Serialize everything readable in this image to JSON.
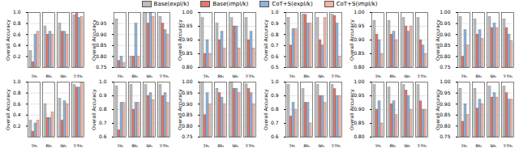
{
  "chart_data": [
    {
      "type": "bar",
      "y_label": "Overall Accuracy",
      "categories": [
        "2b",
        "8b",
        "9b",
        "27b"
      ],
      "ylim": [
        0,
        1
      ],
      "yticks": [
        0.2,
        0.4,
        0.6,
        0.8,
        {
          "value": 1,
          "label": "1.0"
        }
      ],
      "grid": true,
      "legend": "top",
      "series": [
        {
          "name": "Base(expl/k)",
          "color": "#bdbdbd",
          "values": [
            0.3,
            0.75,
            0.8,
            0.95
          ]
        },
        {
          "name": "Base(impl/k)",
          "color": "#e0776b",
          "values": [
            0.1,
            0.6,
            0.65,
            0.98
          ]
        },
        {
          "name": "CoT+S(expl/k)",
          "color": "#8fb3d9",
          "values": [
            0.6,
            0.65,
            0.65,
            0.9
          ]
        },
        {
          "name": "CoT+S(impl/k)",
          "color": "#f2b5a7",
          "values": [
            0.65,
            0.6,
            0.6,
            0.92
          ]
        }
      ]
    },
    {
      "type": "bar",
      "y_label": "Overall Accuracy",
      "categories": [
        "2b",
        "8b",
        "9b",
        "27b"
      ],
      "ylim": [
        0.75,
        1
      ],
      "yticks": [
        0.75,
        {
          "value": 0.8,
          "label": "0.80"
        },
        0.85,
        {
          "value": 0.9,
          "label": "0.90"
        },
        0.95
      ],
      "grid": true,
      "legend": "top",
      "series": [
        {
          "name": "Base(expl/k)",
          "color": "#bdbdbd",
          "values": [
            0.97,
            0.8,
            1.0,
            0.98
          ]
        },
        {
          "name": "Base(impl/k)",
          "color": "#e0776b",
          "values": [
            0.78,
            0.8,
            0.95,
            0.95
          ]
        },
        {
          "name": "CoT+S(expl/k)",
          "color": "#8fb3d9",
          "values": [
            0.8,
            0.95,
            1.0,
            0.92
          ]
        },
        {
          "name": "CoT+S(impl/k)",
          "color": "#f2b5a7",
          "values": [
            0.77,
            0.8,
            0.98,
            0.9
          ]
        }
      ]
    },
    {
      "type": "bar",
      "y_label": "Overall Accuracy",
      "categories": [
        "2b",
        "8b",
        "9b",
        "27b"
      ],
      "ylim": [
        0.8,
        1
      ],
      "yticks": [
        {
          "value": 0.8,
          "label": "0.80"
        },
        0.85,
        {
          "value": 0.9,
          "label": "0.90"
        },
        0.95,
        {
          "value": 1,
          "label": "1.00"
        }
      ],
      "grid": true,
      "legend": "top",
      "series": [
        {
          "name": "Base(expl/k)",
          "color": "#bdbdbd",
          "values": [
            0.98,
            0.96,
            0.98,
            0.98
          ]
        },
        {
          "name": "Base(impl/k)",
          "color": "#e0776b",
          "values": [
            0.85,
            0.9,
            0.95,
            0.9
          ]
        },
        {
          "name": "CoT+S(expl/k)",
          "color": "#8fb3d9",
          "values": [
            0.9,
            0.93,
            0.95,
            0.93
          ]
        },
        {
          "name": "CoT+S(impl/k)",
          "color": "#f2b5a7",
          "values": [
            0.85,
            0.87,
            0.87,
            0.87
          ]
        }
      ]
    },
    {
      "type": "bar",
      "y_label": "Overall Accuracy",
      "categories": [
        "2b",
        "8b",
        "9b",
        "27b"
      ],
      "ylim": [
        0.5,
        1
      ],
      "yticks": [
        0.5,
        0.6,
        0.7,
        0.8,
        0.9,
        {
          "value": 1,
          "label": "1.0"
        }
      ],
      "grid": true,
      "legend": "top",
      "series": [
        {
          "name": "Base(expl/k)",
          "color": "#bdbdbd",
          "values": [
            0.95,
            0.98,
            0.95,
            0.98
          ]
        },
        {
          "name": "Base(impl/k)",
          "color": "#e0776b",
          "values": [
            0.7,
            0.98,
            0.75,
            0.97
          ]
        },
        {
          "name": "CoT+S(expl/k)",
          "color": "#8fb3d9",
          "values": [
            0.85,
            0.9,
            0.7,
            0.9
          ]
        },
        {
          "name": "CoT+S(impl/k)",
          "color": "#f2b5a7",
          "values": [
            0.85,
            0.9,
            0.95,
            0.6
          ]
        }
      ]
    },
    {
      "type": "bar",
      "y_label": "Overall Accuracy",
      "categories": [
        "2b",
        "8b",
        "9b",
        "27b"
      ],
      "ylim": [
        0.8,
        1
      ],
      "yticks": [
        {
          "value": 0.8,
          "label": "0.80"
        },
        0.85,
        {
          "value": 0.9,
          "label": "0.90"
        },
        0.95,
        {
          "value": 1,
          "label": "1.00"
        }
      ],
      "grid": true,
      "legend": "top",
      "series": [
        {
          "name": "Base(expl/k)",
          "color": "#bdbdbd",
          "values": [
            0.97,
            0.97,
            0.98,
            0.98
          ]
        },
        {
          "name": "Base(impl/k)",
          "color": "#e0776b",
          "values": [
            0.92,
            0.92,
            0.95,
            0.9
          ]
        },
        {
          "name": "CoT+S(expl/k)",
          "color": "#8fb3d9",
          "values": [
            0.9,
            0.93,
            0.93,
            0.88
          ]
        },
        {
          "name": "CoT+S(impl/k)",
          "color": "#f2b5a7",
          "values": [
            0.85,
            0.9,
            0.95,
            0.85
          ]
        }
      ]
    },
    {
      "type": "bar",
      "y_label": "Overall Accuracy",
      "categories": [
        "2b",
        "8b",
        "9b",
        "27b"
      ],
      "ylim": [
        0.75,
        1
      ],
      "yticks": [
        0.75,
        {
          "value": 0.8,
          "label": "0.80"
        },
        0.85,
        {
          "value": 0.9,
          "label": "0.90"
        },
        0.95,
        {
          "value": 1,
          "label": "1.00"
        }
      ],
      "grid": true,
      "legend": "top",
      "series": [
        {
          "name": "Base(expl/k)",
          "color": "#bdbdbd",
          "values": [
            0.98,
            0.97,
            0.98,
            0.97
          ]
        },
        {
          "name": "Base(impl/k)",
          "color": "#e0776b",
          "values": [
            0.8,
            0.9,
            0.93,
            0.93
          ]
        },
        {
          "name": "CoT+S(expl/k)",
          "color": "#8fb3d9",
          "values": [
            0.92,
            0.92,
            0.95,
            0.9
          ]
        },
        {
          "name": "CoT+S(impl/k)",
          "color": "#f2b5a7",
          "values": [
            0.85,
            0.88,
            0.93,
            0.87
          ]
        }
      ]
    },
    {
      "type": "bar",
      "y_label": "Overall Accuracy",
      "categories": [
        "2b",
        "8b",
        "9b",
        "27b"
      ],
      "ylim": [
        0,
        1
      ],
      "yticks": [
        0.2,
        0.4,
        0.6,
        0.8,
        {
          "value": 1,
          "label": "1.0"
        }
      ],
      "grid": true,
      "legend": "top",
      "series": [
        {
          "name": "Base(expl/k)",
          "color": "#bdbdbd",
          "values": [
            0.3,
            0.6,
            0.7,
            0.95
          ]
        },
        {
          "name": "Base(impl/k)",
          "color": "#e0776b",
          "values": [
            0.1,
            0.35,
            0.3,
            0.9
          ]
        },
        {
          "name": "CoT+S(expl/k)",
          "color": "#8fb3d9",
          "values": [
            0.25,
            0.35,
            0.65,
            0.9
          ]
        },
        {
          "name": "CoT+S(impl/k)",
          "color": "#f2b5a7",
          "values": [
            0.3,
            0.45,
            0.6,
            0.98
          ]
        }
      ]
    },
    {
      "type": "bar",
      "y_label": "Overall Accuracy",
      "categories": [
        "2b",
        "8b",
        "9b",
        "27b"
      ],
      "ylim": [
        0.6,
        1
      ],
      "yticks": [
        0.6,
        0.7,
        0.8,
        0.9,
        {
          "value": 1,
          "label": "1.0"
        }
      ],
      "grid": true,
      "legend": "top",
      "series": [
        {
          "name": "Base(expl/k)",
          "color": "#bdbdbd",
          "values": [
            0.97,
            0.98,
            0.98,
            0.98
          ]
        },
        {
          "name": "Base(impl/k)",
          "color": "#e0776b",
          "values": [
            0.65,
            0.8,
            0.9,
            0.9
          ]
        },
        {
          "name": "CoT+S(expl/k)",
          "color": "#8fb3d9",
          "values": [
            0.85,
            0.85,
            0.92,
            0.92
          ]
        },
        {
          "name": "CoT+S(impl/k)",
          "color": "#f2b5a7",
          "values": [
            0.85,
            0.85,
            0.87,
            0.85
          ]
        }
      ]
    },
    {
      "type": "bar",
      "y_label": "Overall Accuracy",
      "categories": [
        "2b",
        "8b",
        "9b",
        "27b"
      ],
      "ylim": [
        0.75,
        1
      ],
      "yticks": [
        0.75,
        {
          "value": 0.8,
          "label": "0.80"
        },
        0.85,
        {
          "value": 0.9,
          "label": "0.90"
        },
        0.95,
        {
          "value": 1,
          "label": "1.00"
        }
      ],
      "grid": true,
      "legend": "top",
      "series": [
        {
          "name": "Base(expl/k)",
          "color": "#bdbdbd",
          "values": [
            1.0,
            0.97,
            1.0,
            0.99
          ]
        },
        {
          "name": "Base(impl/k)",
          "color": "#e0776b",
          "values": [
            0.85,
            0.95,
            0.97,
            0.97
          ]
        },
        {
          "name": "CoT+S(expl/k)",
          "color": "#8fb3d9",
          "values": [
            0.95,
            0.93,
            0.97,
            0.95
          ]
        },
        {
          "name": "CoT+S(impl/k)",
          "color": "#f2b5a7",
          "values": [
            0.9,
            0.9,
            0.95,
            0.9
          ]
        }
      ]
    },
    {
      "type": "bar",
      "y_label": "Overall Accuracy",
      "categories": [
        "2b",
        "8b",
        "9b",
        "27b"
      ],
      "ylim": [
        0.6,
        1
      ],
      "yticks": [
        0.6,
        0.7,
        0.8,
        0.9,
        {
          "value": 1,
          "label": "1.0"
        }
      ],
      "grid": true,
      "legend": "top",
      "series": [
        {
          "name": "Base(expl/k)",
          "color": "#bdbdbd",
          "values": [
            0.98,
            0.95,
            0.98,
            0.98
          ]
        },
        {
          "name": "Base(impl/k)",
          "color": "#e0776b",
          "values": [
            0.75,
            0.85,
            0.9,
            0.95
          ]
        },
        {
          "name": "CoT+S(expl/k)",
          "color": "#8fb3d9",
          "values": [
            0.85,
            0.85,
            0.9,
            0.9
          ]
        },
        {
          "name": "CoT+S(impl/k)",
          "color": "#f2b5a7",
          "values": [
            0.8,
            0.7,
            0.85,
            0.9
          ]
        }
      ]
    },
    {
      "type": "bar",
      "y_label": "Overall Accuracy",
      "categories": [
        "2b",
        "8b",
        "9b",
        "27b"
      ],
      "ylim": [
        0.8,
        1
      ],
      "yticks": [
        {
          "value": 0.8,
          "label": "0.80"
        },
        0.85,
        {
          "value": 0.9,
          "label": "0.90"
        },
        0.95,
        {
          "value": 1,
          "label": "1.00"
        }
      ],
      "grid": true,
      "legend": "top",
      "series": [
        {
          "name": "Base(expl/k)",
          "color": "#bdbdbd",
          "values": [
            0.99,
            0.98,
            0.99,
            0.99
          ]
        },
        {
          "name": "Base(impl/k)",
          "color": "#e0776b",
          "values": [
            0.9,
            0.92,
            0.97,
            0.93
          ]
        },
        {
          "name": "CoT+S(expl/k)",
          "color": "#8fb3d9",
          "values": [
            0.93,
            0.93,
            0.95,
            0.9
          ]
        },
        {
          "name": "CoT+S(impl/k)",
          "color": "#f2b5a7",
          "values": [
            0.85,
            0.88,
            0.9,
            0.9
          ]
        }
      ]
    },
    {
      "type": "bar",
      "y_label": "Overall Accuracy",
      "categories": [
        "2b",
        "8b",
        "9b",
        "27b"
      ],
      "ylim": [
        0.75,
        1
      ],
      "yticks": [
        0.75,
        {
          "value": 0.8,
          "label": "0.80"
        },
        0.85,
        {
          "value": 0.9,
          "label": "0.90"
        },
        0.95,
        {
          "value": 1,
          "label": "1.00"
        }
      ],
      "grid": true,
      "legend": "top",
      "series": [
        {
          "name": "Base(expl/k)",
          "color": "#bdbdbd",
          "values": [
            0.97,
            0.97,
            0.98,
            0.98
          ]
        },
        {
          "name": "Base(impl/k)",
          "color": "#e0776b",
          "values": [
            0.82,
            0.88,
            0.93,
            0.95
          ]
        },
        {
          "name": "CoT+S(expl/k)",
          "color": "#8fb3d9",
          "values": [
            0.9,
            0.92,
            0.95,
            0.92
          ]
        },
        {
          "name": "CoT+S(impl/k)",
          "color": "#f2b5a7",
          "values": [
            0.85,
            0.9,
            0.93,
            0.92
          ]
        }
      ]
    }
  ]
}
